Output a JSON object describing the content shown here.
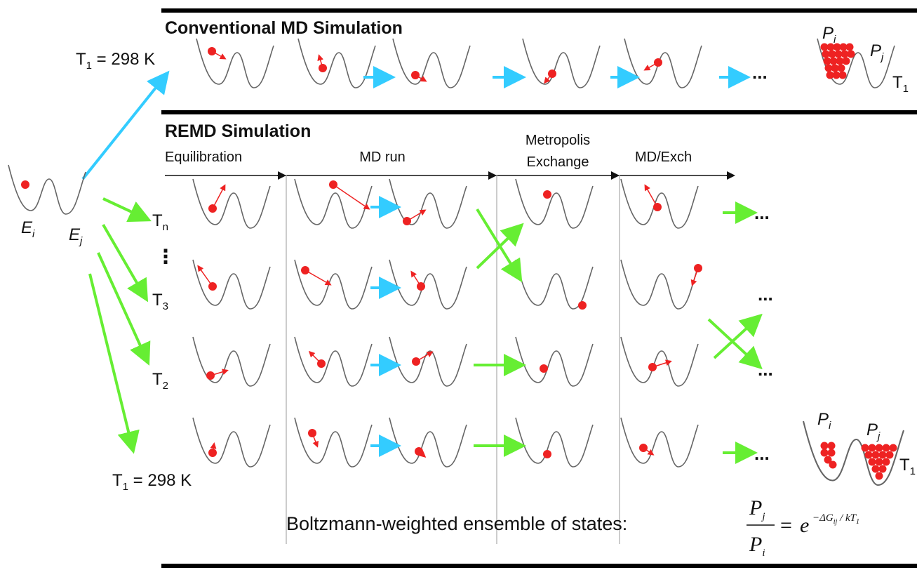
{
  "conventional": {
    "title": "Conventional MD Simulation",
    "temp": {
      "base": "T",
      "sub": "1",
      "rest": " = 298 K"
    },
    "ellipsis": "...",
    "final": {
      "pi": {
        "base": "P",
        "sub": "i"
      },
      "pj": {
        "base": "P",
        "sub": "j"
      },
      "temp": {
        "base": "T",
        "sub": "1"
      }
    }
  },
  "initial": {
    "ei": {
      "base": "E",
      "sub": "i"
    },
    "ej": {
      "base": "E",
      "sub": "j"
    }
  },
  "remd": {
    "title": "REMD Simulation",
    "phases": [
      "Equilibration",
      "MD run",
      "Metropolis",
      "Exchange",
      "MD/Exch"
    ],
    "temps": [
      {
        "base": "T",
        "sub": "n"
      },
      {
        "base": "T",
        "sub": "3"
      },
      {
        "base": "T",
        "sub": "2"
      },
      {
        "base": "T",
        "sub": "1",
        "rest": " = 298 K"
      }
    ],
    "vdots": "⋮",
    "ellipsis": [
      "...",
      "...",
      "...",
      "..."
    ],
    "final": {
      "pi": {
        "base": "P",
        "sub": "i"
      },
      "pj": {
        "base": "P",
        "sub": "j"
      },
      "temp": {
        "base": "T",
        "sub": "1"
      }
    }
  },
  "footer": {
    "text": "Boltzmann-weighted ensemble of states:",
    "numerator": {
      "base": "P",
      "sub": "j"
    },
    "denominator": {
      "base": "P",
      "sub": "i"
    },
    "equals": "=",
    "exp_base": "e",
    "exponent": "−ΔG",
    "exponent_sub": "ij",
    "exponent_rest": " / kT",
    "exponent_sub2": "1"
  }
}
